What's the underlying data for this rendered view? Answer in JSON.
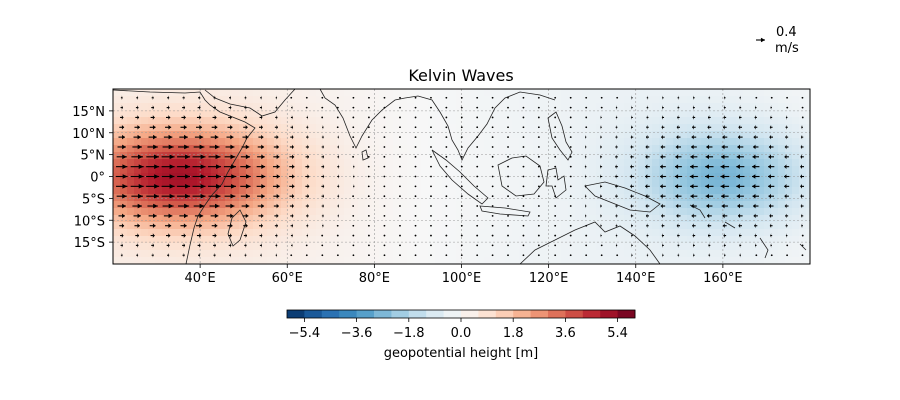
{
  "chart_data": {
    "type": "map",
    "title": "Kelvin Waves",
    "extent": {
      "lon": [
        20,
        180
      ],
      "lat": [
        -20,
        20
      ]
    },
    "lon_ticks": [
      40,
      60,
      80,
      100,
      120,
      140,
      160
    ],
    "lon_tick_labels": [
      "40°E",
      "60°E",
      "80°E",
      "100°E",
      "120°E",
      "140°E",
      "160°E"
    ],
    "lat_ticks": [
      15,
      10,
      5,
      0,
      -5,
      -10,
      -15
    ],
    "lat_tick_labels": [
      "15°N",
      "10°N",
      "5°N",
      "0°",
      "5°S",
      "10°S",
      "15°S"
    ],
    "gridlines": true,
    "field": {
      "name": "geopotential height",
      "units": "m",
      "highs": [
        {
          "lon": 35,
          "lat": 0,
          "value": 4.8
        }
      ],
      "lows": [
        {
          "lon": 160,
          "lat": 0,
          "value": -2.6
        }
      ]
    },
    "quiver": {
      "direction_east_of_lon": 120,
      "key_value": 0.4,
      "key_label_value": "0.4",
      "key_label_units": "m/s"
    },
    "colorbar": {
      "label": "geopotential height [m]",
      "range": [
        -6,
        6
      ],
      "ticks": [
        -5.4,
        -3.6,
        -1.8,
        0.0,
        1.8,
        3.6,
        5.4
      ],
      "tick_labels": [
        "−5.4",
        "−3.6",
        "−1.8",
        "0.0",
        "1.8",
        "3.6",
        "5.4"
      ],
      "colors": [
        "#053061",
        "#2166ac",
        "#4393c3",
        "#92c5de",
        "#d1e5f0",
        "#f7f7f7",
        "#fddbc7",
        "#f4a582",
        "#d6604d",
        "#b2182b",
        "#67001f"
      ]
    }
  }
}
